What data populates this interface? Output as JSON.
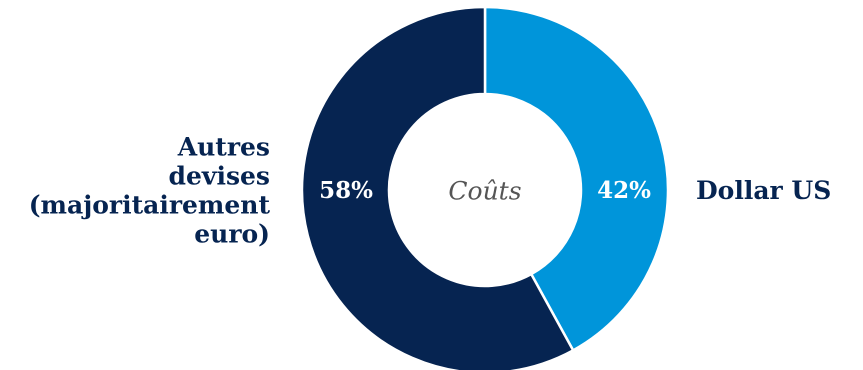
{
  "chart_data": {
    "type": "pie",
    "style": "donut",
    "center_label": "Coûts",
    "slices": [
      {
        "label_lines": [
          "Dollar US"
        ],
        "value": 42,
        "value_label": "42%",
        "color": "#0095DA"
      },
      {
        "label_lines": [
          "Autres",
          "devises",
          "(majoritairement",
          "euro)"
        ],
        "value": 58,
        "value_label": "58%",
        "color": "#062451"
      }
    ],
    "start_angle": "12 o'clock",
    "direction": "clockwise",
    "label_color": "#062451",
    "value_label_color": "#ffffff",
    "center_label_color": "#555555",
    "separator_color": "#ffffff"
  }
}
